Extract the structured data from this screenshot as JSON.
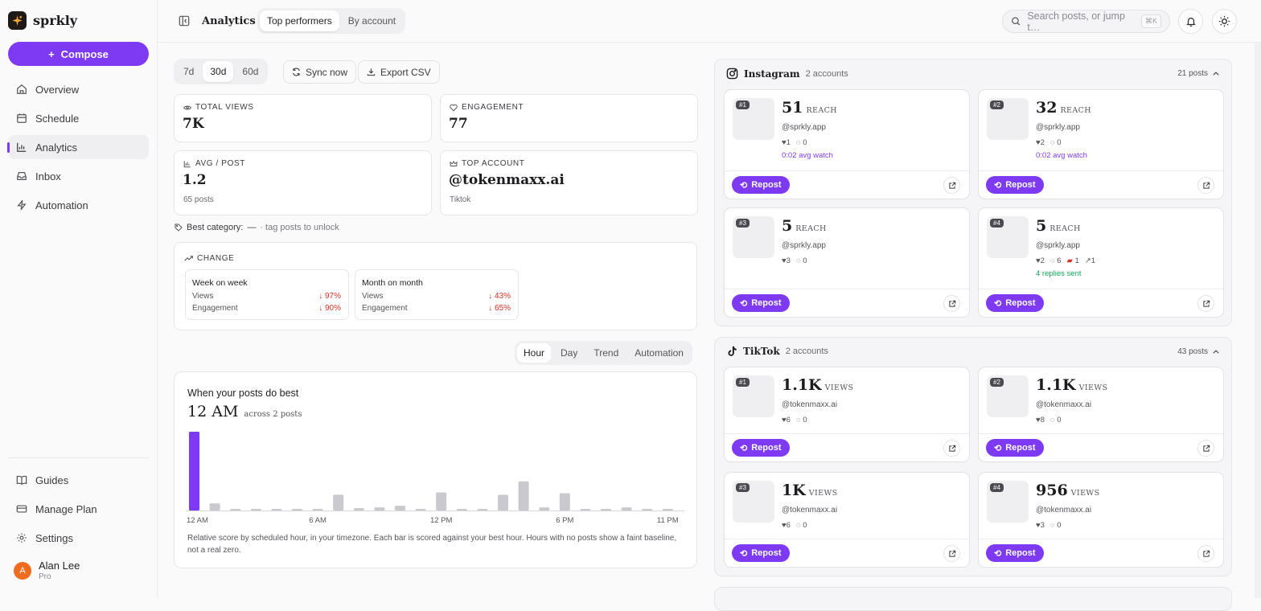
{
  "brand": {
    "name": "sprkly"
  },
  "sidebar": {
    "compose_label": "Compose",
    "items": [
      {
        "label": "Overview",
        "icon": "home-icon"
      },
      {
        "label": "Schedule",
        "icon": "calendar-icon"
      },
      {
        "label": "Analytics",
        "icon": "bar-chart-icon",
        "active": true
      },
      {
        "label": "Inbox",
        "icon": "inbox-icon"
      },
      {
        "label": "Automation",
        "icon": "bolt-icon"
      }
    ],
    "bottom_items": [
      {
        "label": "Guides",
        "icon": "book-icon"
      },
      {
        "label": "Manage Plan",
        "icon": "card-icon"
      },
      {
        "label": "Settings",
        "icon": "gear-icon"
      }
    ],
    "user": {
      "initial": "A",
      "name": "Alan Lee",
      "plan": "Pro"
    }
  },
  "header": {
    "title": "Analytics",
    "tabs": [
      "Top performers",
      "By account"
    ],
    "search_placeholder": "Search posts, or jump t…",
    "search_shortcut": "⌘K"
  },
  "filters": {
    "ranges": [
      "7d",
      "30d",
      "60d"
    ],
    "sync_label": "Sync now",
    "export_label": "Export CSV"
  },
  "stats": {
    "total_views": {
      "label": "TOTAL VIEWS",
      "value": "7K"
    },
    "engagement": {
      "label": "ENGAGEMENT",
      "value": "77"
    },
    "avg_post": {
      "label": "AVG / POST",
      "value": "1.2",
      "sub": "65 posts"
    },
    "top_account": {
      "label": "TOP ACCOUNT",
      "value": "@tokenmaxx.ai",
      "sub": "Tiktok"
    }
  },
  "best_category": {
    "label": "Best category:",
    "value": "—",
    "hint": "· tag posts to unlock"
  },
  "change": {
    "label": "CHANGE",
    "wow": {
      "title": "Week on week",
      "views_label": "Views",
      "views": "↓ 97%",
      "eng_label": "Engagement",
      "eng": "↓ 90%"
    },
    "mom": {
      "title": "Month on month",
      "views_label": "Views",
      "views": "↓ 43%",
      "eng_label": "Engagement",
      "eng": "↓ 65%"
    }
  },
  "chart_tabs": [
    "Hour",
    "Day",
    "Trend",
    "Automation"
  ],
  "chart_card": {
    "title": "When your posts do best",
    "best_hour": "12 AM",
    "best_hour_sub": "across 2 posts",
    "note": "Relative score by scheduled hour, in your timezone. Each bar is scored against your best hour. Hours with no posts show a faint baseline, not a real zero."
  },
  "chart_data": {
    "type": "bar",
    "categories": [
      "12 AM",
      "1 AM",
      "2 AM",
      "3 AM",
      "4 AM",
      "5 AM",
      "6 AM",
      "7 AM",
      "8 AM",
      "9 AM",
      "10 AM",
      "11 AM",
      "12 PM",
      "1 PM",
      "2 PM",
      "3 PM",
      "4 PM",
      "5 PM",
      "6 PM",
      "7 PM",
      "8 PM",
      "9 PM",
      "10 PM",
      "11 PM"
    ],
    "values": [
      100,
      9,
      1,
      1,
      1,
      1,
      2,
      20,
      3,
      4,
      6,
      1,
      23,
      1,
      1,
      20,
      37,
      4,
      22,
      1,
      1,
      4,
      1,
      1
    ],
    "tick_labels": [
      "12 AM",
      "6 AM",
      "12 PM",
      "6 PM",
      "11 PM"
    ],
    "ylim": [
      0,
      100
    ],
    "colors": {
      "best": "#7e3af2",
      "other": "#c9c9cf"
    }
  },
  "platforms": [
    {
      "name": "Instagram",
      "accounts": "2 accounts",
      "count": "21 posts",
      "posts": [
        {
          "rank": "#1",
          "value": "51",
          "unit": "REACH",
          "handle": "@sprkly.app",
          "likes": "1",
          "comments": "0",
          "extra": "0:02 avg watch"
        },
        {
          "rank": "#2",
          "value": "32",
          "unit": "REACH",
          "handle": "@sprkly.app",
          "likes": "2",
          "comments": "0",
          "extra": "0:02 avg watch"
        },
        {
          "rank": "#3",
          "value": "5",
          "unit": "REACH",
          "handle": "@sprkly.app",
          "likes": "3",
          "comments": "0",
          "extra": ""
        },
        {
          "rank": "#4",
          "value": "5",
          "unit": "REACH",
          "handle": "@sprkly.app",
          "likes": "2",
          "comments": "6",
          "saves": "1",
          "shares": "1",
          "extra": "4 replies sent"
        }
      ]
    },
    {
      "name": "TikTok",
      "accounts": "2 accounts",
      "count": "43 posts",
      "posts": [
        {
          "rank": "#1",
          "value": "1.1K",
          "unit": "VIEWS",
          "handle": "@tokenmaxx.ai",
          "likes": "6",
          "comments": "0"
        },
        {
          "rank": "#2",
          "value": "1.1K",
          "unit": "VIEWS",
          "handle": "@tokenmaxx.ai",
          "likes": "8",
          "comments": "0"
        },
        {
          "rank": "#3",
          "value": "1K",
          "unit": "VIEWS",
          "handle": "@tokenmaxx.ai",
          "likes": "6",
          "comments": "0"
        },
        {
          "rank": "#4",
          "value": "956",
          "unit": "VIEWS",
          "handle": "@tokenmaxx.ai",
          "likes": "3",
          "comments": "0"
        }
      ]
    }
  ],
  "repost_label": "Repost",
  "accent": "#7e3af2"
}
